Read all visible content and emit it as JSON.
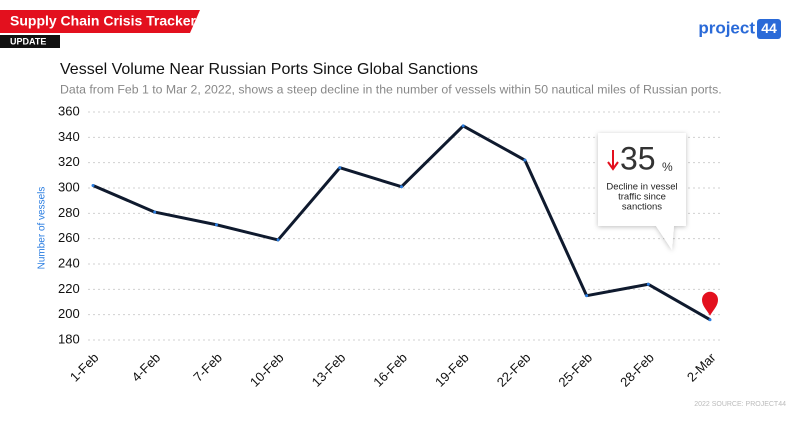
{
  "header": {
    "title": "Supply Chain Crisis Tracker",
    "badge": "UPDATE"
  },
  "logo": {
    "word": "project",
    "number": "44"
  },
  "source": "2022 SOURCE: PROJECT44",
  "chart_data": {
    "type": "line",
    "title": "Vessel Volume Near Russian Ports Since Global Sanctions",
    "subtitle": "Data from Feb 1 to Mar 2, 2022, shows a steep decline in the number of vessels within 50 nautical miles of Russian ports.",
    "y_label": "Number of vessels",
    "categories": [
      "1-Feb",
      "4-Feb",
      "7-Feb",
      "10-Feb",
      "13-Feb",
      "16-Feb",
      "19-Feb",
      "22-Feb",
      "25-Feb",
      "28-Feb",
      "2-Mar"
    ],
    "values": [
      302,
      281,
      271,
      259,
      316,
      301,
      349,
      322,
      215,
      224,
      196
    ],
    "color": "#0f1a2e",
    "ylim": [
      180,
      360
    ],
    "yticks": [
      180,
      200,
      220,
      240,
      260,
      280,
      300,
      320,
      340,
      360
    ],
    "grid": true,
    "annotation": {
      "value": 35,
      "unit": "%",
      "lines": [
        "Decline in vessel",
        "traffic since",
        "sanctions"
      ]
    }
  }
}
